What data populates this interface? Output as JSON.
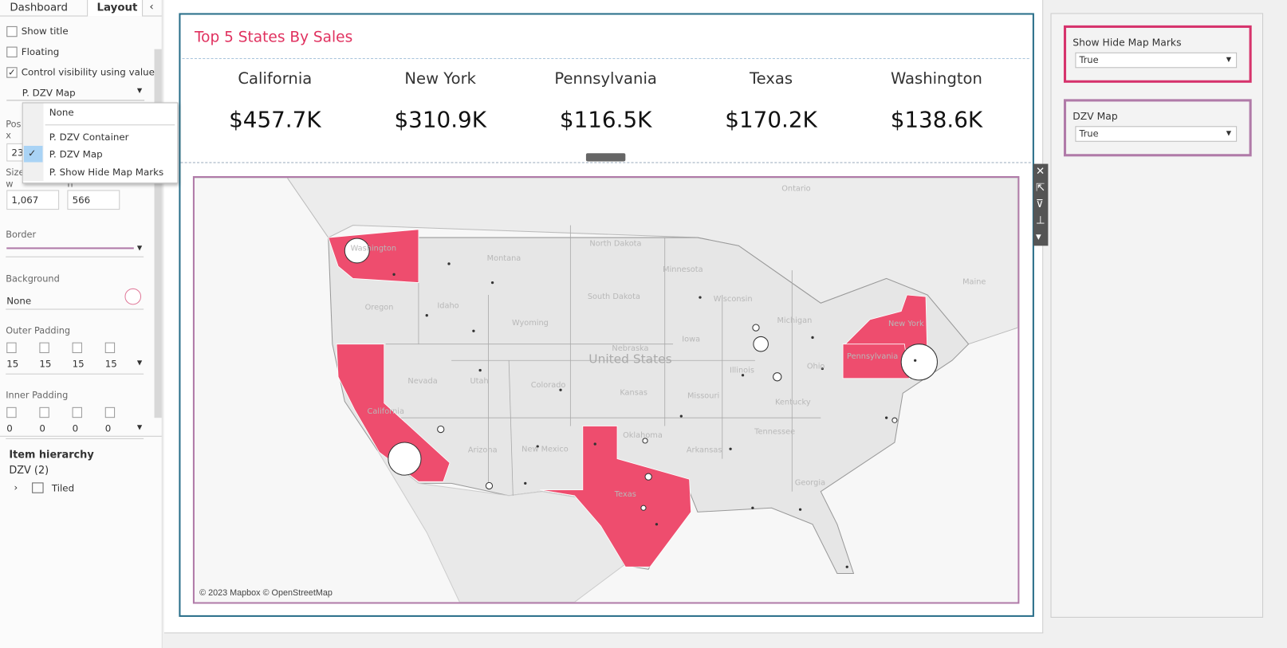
{
  "sidebar": {
    "tabs": [
      "Dashboard",
      "Layout"
    ],
    "active_tab": 1,
    "checkboxes": [
      {
        "label": "Show title",
        "checked": false
      },
      {
        "label": "Floating",
        "checked": false
      },
      {
        "label": "Control visibility using value",
        "checked": true
      }
    ],
    "visibility_field": "P. DZV Map",
    "dropdown": {
      "options": [
        "None",
        "P. DZV Container",
        "P. DZV Map",
        "P. Show Hide Map Marks"
      ],
      "selected": 2
    },
    "position": {
      "label": "Pos",
      "x_label": "x",
      "x_value": "23"
    },
    "size": {
      "label": "Size",
      "w_label": "w",
      "h_label": "h",
      "w_value": "1,067",
      "h_value": "566"
    },
    "border": {
      "label": "Border"
    },
    "background": {
      "label": "Background",
      "value": "None"
    },
    "outer_padding": {
      "label": "Outer Padding",
      "values": [
        "15",
        "15",
        "15",
        "15"
      ]
    },
    "inner_padding": {
      "label": "Inner Padding",
      "values": [
        "0",
        "0",
        "0",
        "0"
      ]
    },
    "hierarchy": {
      "title": "Item hierarchy",
      "root": "DZV (2)",
      "child": "Tiled"
    }
  },
  "dashboard": {
    "title": "Top 5 States By Sales",
    "kpis": [
      {
        "state": "California",
        "sales": "$457.7K"
      },
      {
        "state": "New York",
        "sales": "$310.9K"
      },
      {
        "state": "Pennsylvania",
        "sales": "$116.5K"
      },
      {
        "state": "Texas",
        "sales": "$170.2K"
      },
      {
        "state": "Washington",
        "sales": "$138.6K"
      }
    ],
    "map": {
      "attribution": "© 2023 Mapbox © OpenStreetMap",
      "labels": [
        "Ontario",
        "Washington",
        "Oregon",
        "California",
        "Nevada",
        "Idaho",
        "Montana",
        "Wyoming",
        "Utah",
        "Colorado",
        "Arizona",
        "New Mexico",
        "Texas",
        "North Dakota",
        "South Dakota",
        "Nebraska",
        "Kansas",
        "Oklahoma",
        "Minnesota",
        "Iowa",
        "Missouri",
        "Arkansas",
        "Wisconsin",
        "Illinois",
        "Michigan",
        "Ohio",
        "Kentucky",
        "Tennessee",
        "Georgia",
        "Pennsylvania",
        "New York",
        "Maine",
        "United States"
      ]
    }
  },
  "filters": [
    {
      "title": "Show Hide Map Marks",
      "value": "True"
    },
    {
      "title": "DZV Map",
      "value": "True"
    }
  ]
}
